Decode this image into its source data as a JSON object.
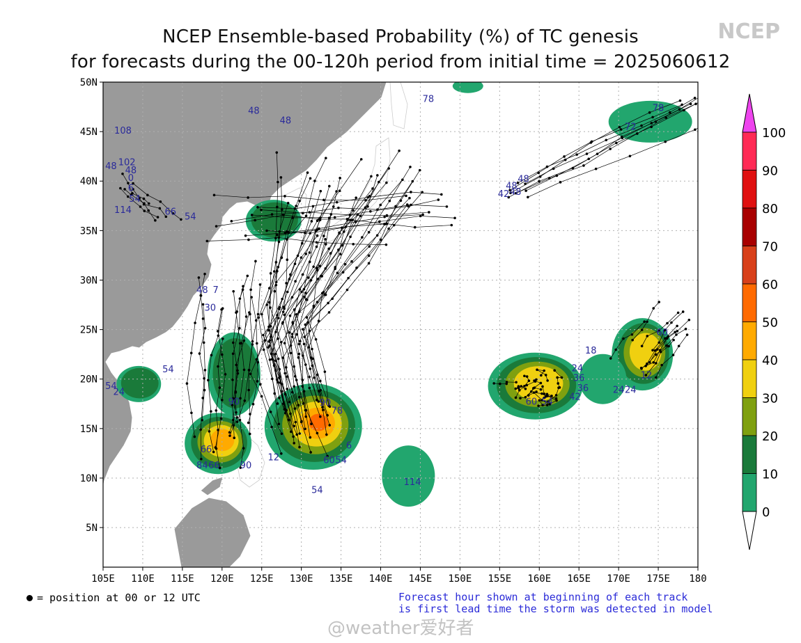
{
  "title": {
    "line1": "NCEP Ensemble-based Probability (%) of TC genesis",
    "line2": "for forecasts during the 00-120h period from initial time = 2025060612"
  },
  "brand": "NCEP",
  "axes": {
    "lon_labels": [
      "105E",
      "110E",
      "115E",
      "120E",
      "125E",
      "130E",
      "135E",
      "140E",
      "145E",
      "150E",
      "155E",
      "160E",
      "165E",
      "170E",
      "175E",
      "180"
    ],
    "lat_labels": [
      "50N",
      "45N",
      "40N",
      "35N",
      "30N",
      "25N",
      "20N",
      "15N",
      "10N",
      "5N"
    ],
    "lon_values": [
      105,
      110,
      115,
      120,
      125,
      130,
      135,
      140,
      145,
      150,
      155,
      160,
      165,
      170,
      175,
      180
    ],
    "lat_values": [
      50,
      45,
      40,
      35,
      30,
      25,
      20,
      15,
      10,
      5
    ],
    "lon_range": [
      105,
      180
    ],
    "lat_range": [
      1,
      50
    ]
  },
  "colorbar": {
    "labels": [
      "100",
      "90",
      "80",
      "70",
      "60",
      "50",
      "40",
      "30",
      "20",
      "10",
      "0"
    ],
    "colors": [
      "#ff3a9a",
      "#ff2a55",
      "#e01010",
      "#a80000",
      "#d8401a",
      "#ff6a00",
      "#ffaa00",
      "#f0d010",
      "#7fa010",
      "#1a7a3a",
      "#22a66e",
      "#ffffff"
    ],
    "top_arrow_color": "#ee44ee"
  },
  "track_labels": [
    {
      "text": "108",
      "lon": 107.5,
      "lat": 44.8
    },
    {
      "text": "48",
      "lon": 106.0,
      "lat": 41.2
    },
    {
      "text": "102",
      "lon": 108.0,
      "lat": 41.6
    },
    {
      "text": "48",
      "lon": 108.5,
      "lat": 40.8
    },
    {
      "text": "0",
      "lon": 108.5,
      "lat": 40.0
    },
    {
      "text": "6",
      "lon": 108.5,
      "lat": 39.0
    },
    {
      "text": "54",
      "lon": 109.0,
      "lat": 37.9
    },
    {
      "text": "114",
      "lon": 107.5,
      "lat": 36.8
    },
    {
      "text": "66",
      "lon": 113.5,
      "lat": 36.6
    },
    {
      "text": "54",
      "lon": 116.0,
      "lat": 36.1
    },
    {
      "text": "48",
      "lon": 124.0,
      "lat": 46.8
    },
    {
      "text": "48",
      "lon": 128.0,
      "lat": 45.8
    },
    {
      "text": "78",
      "lon": 146.0,
      "lat": 48.0
    },
    {
      "text": "48",
      "lon": 117.5,
      "lat": 28.7
    },
    {
      "text": "7",
      "lon": 119.2,
      "lat": 28.7
    },
    {
      "text": "30",
      "lon": 118.5,
      "lat": 26.9
    },
    {
      "text": "54",
      "lon": 113.2,
      "lat": 20.7
    },
    {
      "text": "54",
      "lon": 106.0,
      "lat": 19.0
    },
    {
      "text": "24",
      "lon": 107.0,
      "lat": 18.4
    },
    {
      "text": "90",
      "lon": 121.5,
      "lat": 17.4
    },
    {
      "text": "66",
      "lon": 118.0,
      "lat": 12.6
    },
    {
      "text": "84",
      "lon": 117.5,
      "lat": 11.0
    },
    {
      "text": "66",
      "lon": 119.0,
      "lat": 11.0
    },
    {
      "text": "90",
      "lon": 123.0,
      "lat": 11.0
    },
    {
      "text": "90",
      "lon": 133.0,
      "lat": 17.3
    },
    {
      "text": "78",
      "lon": 134.5,
      "lat": 16.5
    },
    {
      "text": "6",
      "lon": 136.0,
      "lat": 13.0
    },
    {
      "text": "12",
      "lon": 126.5,
      "lat": 11.8
    },
    {
      "text": "60",
      "lon": 133.5,
      "lat": 11.5
    },
    {
      "text": "54",
      "lon": 135.0,
      "lat": 11.5
    },
    {
      "text": "54",
      "lon": 132.0,
      "lat": 8.5
    },
    {
      "text": "114",
      "lon": 144.0,
      "lat": 9.3
    },
    {
      "text": "60",
      "lon": 159.0,
      "lat": 17.4
    },
    {
      "text": "54",
      "lon": 161.0,
      "lat": 17.4
    },
    {
      "text": "42",
      "lon": 164.5,
      "lat": 17.9
    },
    {
      "text": "36",
      "lon": 165.5,
      "lat": 18.8
    },
    {
      "text": "36",
      "lon": 165.0,
      "lat": 19.8
    },
    {
      "text": "24",
      "lon": 164.8,
      "lat": 20.8
    },
    {
      "text": "18",
      "lon": 166.5,
      "lat": 22.6
    },
    {
      "text": "24",
      "lon": 170.0,
      "lat": 18.6
    },
    {
      "text": "24",
      "lon": 171.5,
      "lat": 18.6
    },
    {
      "text": "12",
      "lon": 173.5,
      "lat": 20.1
    },
    {
      "text": "60",
      "lon": 175.5,
      "lat": 24.4
    },
    {
      "text": "72",
      "lon": 171.5,
      "lat": 45.2
    },
    {
      "text": "78",
      "lon": 175.0,
      "lat": 47.1
    },
    {
      "text": "42",
      "lon": 155.5,
      "lat": 38.4
    },
    {
      "text": "48",
      "lon": 156.5,
      "lat": 39.2
    },
    {
      "text": "48",
      "lon": 158.0,
      "lat": 39.9
    },
    {
      "text": "48",
      "lon": 157.0,
      "lat": 38.6
    }
  ],
  "footer": {
    "legend_text": "= position at 00 or 12 UTC",
    "note_line1": "Forecast hour shown at beginning of each track",
    "note_line2": "is first lead time the storm was detected in model"
  },
  "watermark": "@weather爱好者"
}
